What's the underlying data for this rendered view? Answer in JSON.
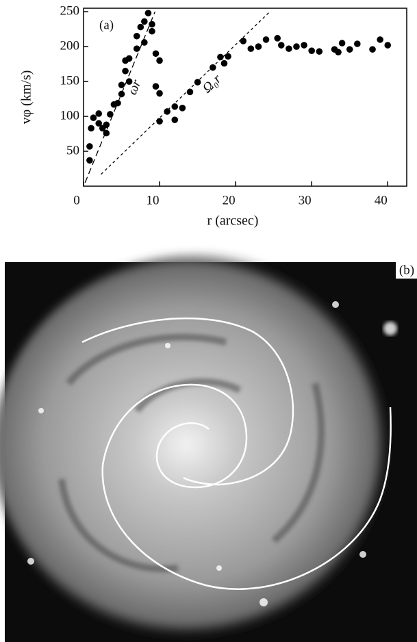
{
  "chart_data": {
    "type": "scatter",
    "panel_label": "(a)",
    "xlabel": "r (arcsec)",
    "ylabel": "vφ (km/s)",
    "xlim": [
      0,
      42.5
    ],
    "ylim": [
      0,
      255
    ],
    "xticks": [
      0,
      10,
      20,
      30,
      40
    ],
    "yticks": [
      50,
      100,
      150,
      200,
      250
    ],
    "color": "#000000",
    "x": [
      0.8,
      0.8,
      1,
      1.3,
      2,
      2,
      2.5,
      3,
      3,
      3.5,
      4,
      4.5,
      5,
      5,
      5.5,
      5.5,
      6,
      6,
      7,
      7,
      7.5,
      8,
      8,
      8.5,
      9,
      9,
      9.5,
      10,
      9.5,
      10,
      10,
      11,
      12,
      12,
      13,
      14,
      15,
      17,
      18,
      18.5,
      19,
      21,
      22,
      23,
      24,
      25.5,
      26,
      27,
      28,
      29,
      30,
      31,
      33,
      33.5,
      34,
      35,
      36,
      38,
      39,
      40
    ],
    "y": [
      37,
      57,
      83,
      98,
      104,
      90,
      83,
      88,
      76,
      103,
      117,
      119,
      132,
      145,
      165,
      180,
      150,
      183,
      197,
      215,
      228,
      236,
      206,
      248,
      232,
      222,
      190,
      180,
      143,
      133,
      93,
      107,
      95,
      114,
      112,
      135,
      149,
      170,
      185,
      176,
      186,
      208,
      197,
      200,
      210,
      212,
      202,
      197,
      200,
      202,
      194,
      193,
      196,
      192,
      205,
      196,
      204,
      196,
      210,
      202
    ],
    "lines": [
      {
        "label": "ωr",
        "dash": "long",
        "x": [
          0.2,
          9.4
        ],
        "y": [
          5,
          250
        ]
      },
      {
        "label": "Ω₀r",
        "dash": "short",
        "x": [
          2.3,
          24.5
        ],
        "y": [
          17,
          250
        ]
      }
    ]
  },
  "image_panel": {
    "label": "(b)"
  }
}
